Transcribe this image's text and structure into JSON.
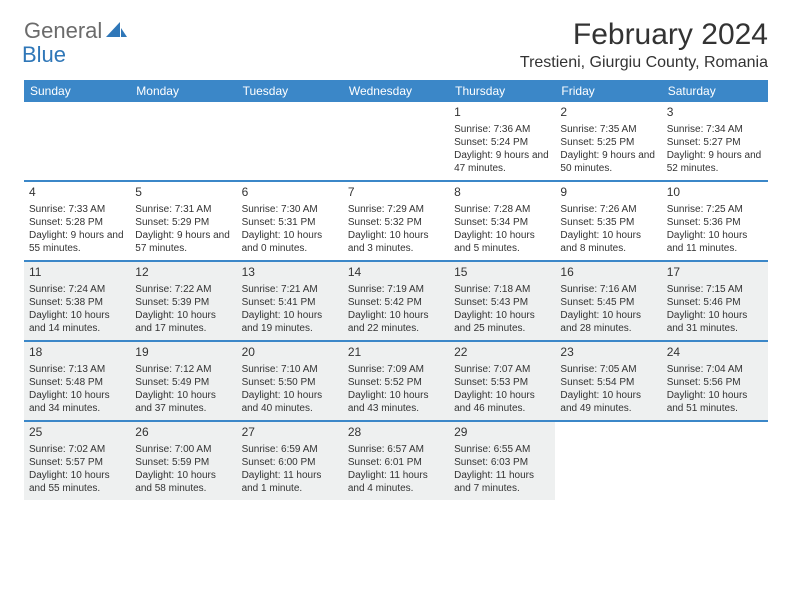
{
  "brand": {
    "part1": "General",
    "part2": "Blue"
  },
  "title": "February 2024",
  "location": "Trestieni, Giurgiu County, Romania",
  "colors": {
    "header_bg": "#3b87c8",
    "brand_gray": "#6b6b6b",
    "brand_blue": "#2f77b8",
    "shaded_bg": "#eef0f0",
    "text": "#333333",
    "rule": "#3b87c8"
  },
  "day_names": [
    "Sunday",
    "Monday",
    "Tuesday",
    "Wednesday",
    "Thursday",
    "Friday",
    "Saturday"
  ],
  "weeks": [
    [
      {
        "n": "",
        "sr": "",
        "ss": "",
        "dl": "",
        "shaded": false
      },
      {
        "n": "",
        "sr": "",
        "ss": "",
        "dl": "",
        "shaded": false
      },
      {
        "n": "",
        "sr": "",
        "ss": "",
        "dl": "",
        "shaded": false
      },
      {
        "n": "",
        "sr": "",
        "ss": "",
        "dl": "",
        "shaded": false
      },
      {
        "n": "1",
        "sr": "Sunrise: 7:36 AM",
        "ss": "Sunset: 5:24 PM",
        "dl": "Daylight: 9 hours and 47 minutes.",
        "shaded": false
      },
      {
        "n": "2",
        "sr": "Sunrise: 7:35 AM",
        "ss": "Sunset: 5:25 PM",
        "dl": "Daylight: 9 hours and 50 minutes.",
        "shaded": false
      },
      {
        "n": "3",
        "sr": "Sunrise: 7:34 AM",
        "ss": "Sunset: 5:27 PM",
        "dl": "Daylight: 9 hours and 52 minutes.",
        "shaded": false
      }
    ],
    [
      {
        "n": "4",
        "sr": "Sunrise: 7:33 AM",
        "ss": "Sunset: 5:28 PM",
        "dl": "Daylight: 9 hours and 55 minutes.",
        "shaded": false
      },
      {
        "n": "5",
        "sr": "Sunrise: 7:31 AM",
        "ss": "Sunset: 5:29 PM",
        "dl": "Daylight: 9 hours and 57 minutes.",
        "shaded": false
      },
      {
        "n": "6",
        "sr": "Sunrise: 7:30 AM",
        "ss": "Sunset: 5:31 PM",
        "dl": "Daylight: 10 hours and 0 minutes.",
        "shaded": false
      },
      {
        "n": "7",
        "sr": "Sunrise: 7:29 AM",
        "ss": "Sunset: 5:32 PM",
        "dl": "Daylight: 10 hours and 3 minutes.",
        "shaded": false
      },
      {
        "n": "8",
        "sr": "Sunrise: 7:28 AM",
        "ss": "Sunset: 5:34 PM",
        "dl": "Daylight: 10 hours and 5 minutes.",
        "shaded": false
      },
      {
        "n": "9",
        "sr": "Sunrise: 7:26 AM",
        "ss": "Sunset: 5:35 PM",
        "dl": "Daylight: 10 hours and 8 minutes.",
        "shaded": false
      },
      {
        "n": "10",
        "sr": "Sunrise: 7:25 AM",
        "ss": "Sunset: 5:36 PM",
        "dl": "Daylight: 10 hours and 11 minutes.",
        "shaded": false
      }
    ],
    [
      {
        "n": "11",
        "sr": "Sunrise: 7:24 AM",
        "ss": "Sunset: 5:38 PM",
        "dl": "Daylight: 10 hours and 14 minutes.",
        "shaded": true
      },
      {
        "n": "12",
        "sr": "Sunrise: 7:22 AM",
        "ss": "Sunset: 5:39 PM",
        "dl": "Daylight: 10 hours and 17 minutes.",
        "shaded": true
      },
      {
        "n": "13",
        "sr": "Sunrise: 7:21 AM",
        "ss": "Sunset: 5:41 PM",
        "dl": "Daylight: 10 hours and 19 minutes.",
        "shaded": true
      },
      {
        "n": "14",
        "sr": "Sunrise: 7:19 AM",
        "ss": "Sunset: 5:42 PM",
        "dl": "Daylight: 10 hours and 22 minutes.",
        "shaded": true
      },
      {
        "n": "15",
        "sr": "Sunrise: 7:18 AM",
        "ss": "Sunset: 5:43 PM",
        "dl": "Daylight: 10 hours and 25 minutes.",
        "shaded": true
      },
      {
        "n": "16",
        "sr": "Sunrise: 7:16 AM",
        "ss": "Sunset: 5:45 PM",
        "dl": "Daylight: 10 hours and 28 minutes.",
        "shaded": true
      },
      {
        "n": "17",
        "sr": "Sunrise: 7:15 AM",
        "ss": "Sunset: 5:46 PM",
        "dl": "Daylight: 10 hours and 31 minutes.",
        "shaded": true
      }
    ],
    [
      {
        "n": "18",
        "sr": "Sunrise: 7:13 AM",
        "ss": "Sunset: 5:48 PM",
        "dl": "Daylight: 10 hours and 34 minutes.",
        "shaded": true
      },
      {
        "n": "19",
        "sr": "Sunrise: 7:12 AM",
        "ss": "Sunset: 5:49 PM",
        "dl": "Daylight: 10 hours and 37 minutes.",
        "shaded": true
      },
      {
        "n": "20",
        "sr": "Sunrise: 7:10 AM",
        "ss": "Sunset: 5:50 PM",
        "dl": "Daylight: 10 hours and 40 minutes.",
        "shaded": true
      },
      {
        "n": "21",
        "sr": "Sunrise: 7:09 AM",
        "ss": "Sunset: 5:52 PM",
        "dl": "Daylight: 10 hours and 43 minutes.",
        "shaded": true
      },
      {
        "n": "22",
        "sr": "Sunrise: 7:07 AM",
        "ss": "Sunset: 5:53 PM",
        "dl": "Daylight: 10 hours and 46 minutes.",
        "shaded": true
      },
      {
        "n": "23",
        "sr": "Sunrise: 7:05 AM",
        "ss": "Sunset: 5:54 PM",
        "dl": "Daylight: 10 hours and 49 minutes.",
        "shaded": true
      },
      {
        "n": "24",
        "sr": "Sunrise: 7:04 AM",
        "ss": "Sunset: 5:56 PM",
        "dl": "Daylight: 10 hours and 51 minutes.",
        "shaded": true
      }
    ],
    [
      {
        "n": "25",
        "sr": "Sunrise: 7:02 AM",
        "ss": "Sunset: 5:57 PM",
        "dl": "Daylight: 10 hours and 55 minutes.",
        "shaded": true
      },
      {
        "n": "26",
        "sr": "Sunrise: 7:00 AM",
        "ss": "Sunset: 5:59 PM",
        "dl": "Daylight: 10 hours and 58 minutes.",
        "shaded": true
      },
      {
        "n": "27",
        "sr": "Sunrise: 6:59 AM",
        "ss": "Sunset: 6:00 PM",
        "dl": "Daylight: 11 hours and 1 minute.",
        "shaded": true
      },
      {
        "n": "28",
        "sr": "Sunrise: 6:57 AM",
        "ss": "Sunset: 6:01 PM",
        "dl": "Daylight: 11 hours and 4 minutes.",
        "shaded": true
      },
      {
        "n": "29",
        "sr": "Sunrise: 6:55 AM",
        "ss": "Sunset: 6:03 PM",
        "dl": "Daylight: 11 hours and 7 minutes.",
        "shaded": true
      },
      {
        "n": "",
        "sr": "",
        "ss": "",
        "dl": "",
        "shaded": false
      },
      {
        "n": "",
        "sr": "",
        "ss": "",
        "dl": "",
        "shaded": false
      }
    ]
  ]
}
